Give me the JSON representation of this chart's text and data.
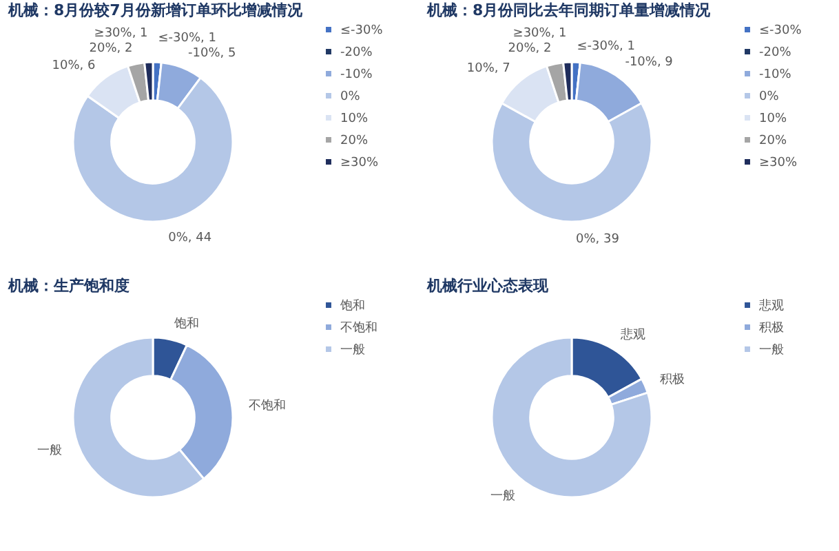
{
  "chart_data": [
    {
      "type": "donut",
      "title": "机械：8月份较7月份新增订单环比增减情况",
      "categories": [
        "≤-30%",
        "-20%",
        "-10%",
        "0%",
        "10%",
        "20%",
        "≥30%"
      ],
      "values": [
        1,
        0,
        5,
        44,
        6,
        2,
        1
      ],
      "colors": [
        "#4472c4",
        "#203864",
        "#8faadc",
        "#b4c7e7",
        "#dae3f3",
        "#a5a5a5",
        "#1f2d5c"
      ],
      "value_labels": [
        "≤-30%, 1",
        null,
        "-10%, 5",
        "0%, 44",
        "10%, 6",
        "20%, 2",
        "≥30%, 1"
      ],
      "legend": "right"
    },
    {
      "type": "donut",
      "title": "机械：8月份同比去年同期订单量增减情况",
      "categories": [
        "≤-30%",
        "-20%",
        "-10%",
        "0%",
        "10%",
        "20%",
        "≥30%"
      ],
      "values": [
        1,
        0,
        9,
        39,
        7,
        2,
        1
      ],
      "colors": [
        "#4472c4",
        "#203864",
        "#8faadc",
        "#b4c7e7",
        "#dae3f3",
        "#a5a5a5",
        "#1f2d5c"
      ],
      "value_labels": [
        "≤-30%, 1",
        null,
        "-10%, 9",
        "0%, 39",
        "10%, 7",
        "20%, 2",
        "≥30%, 1"
      ],
      "legend": "right"
    },
    {
      "type": "donut",
      "title": "机械：生产饱和度",
      "categories": [
        "饱和",
        "不饱和",
        "一般"
      ],
      "values": [
        7,
        32,
        61
      ],
      "colors": [
        "#2f5597",
        "#8faadc",
        "#b4c7e7"
      ],
      "value_labels": [
        "饱和",
        "不饱和",
        "一般"
      ],
      "legend": "right"
    },
    {
      "type": "donut",
      "title": "机械行业心态表现",
      "categories": [
        "悲观",
        "积极",
        "一般"
      ],
      "values": [
        17,
        3,
        80
      ],
      "colors": [
        "#2f5597",
        "#8faadc",
        "#b4c7e7"
      ],
      "value_labels": [
        "悲观",
        "积极",
        "一般"
      ],
      "legend": "right"
    }
  ]
}
